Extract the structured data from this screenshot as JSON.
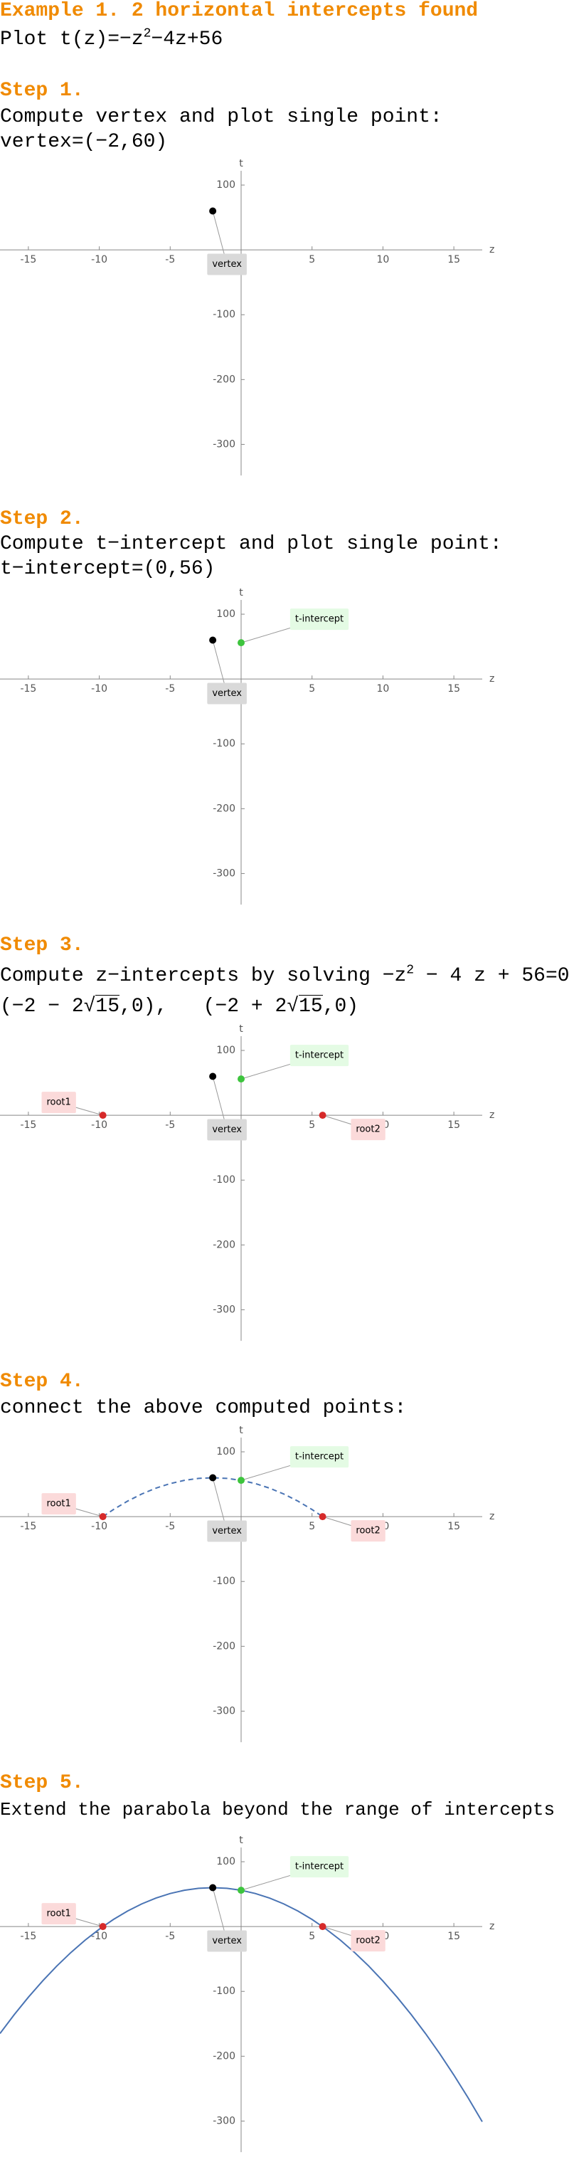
{
  "title": "Example 1. 2 horizontal intercepts found",
  "problem": {
    "text": "Plot t(z)=−z",
    "exp": "2",
    "rest": "−4z+56"
  },
  "steps": [
    {
      "heading": "Step 1.",
      "text": "Compute vertex and plot single point:",
      "result": "vertex=(−2,60)"
    },
    {
      "heading": "Step 2.",
      "text": "Compute t−intercept and plot single point:",
      "result": "t−intercept=(0,56)"
    },
    {
      "heading": "Step 3.",
      "text": "Compute z−intercepts by solving −z",
      "exp": "2",
      "rest": " − 4 z + 56=0:",
      "roots": [
        {
          "before": "(−2 − 2√",
          "radicand": "15",
          "after": ",0),"
        },
        {
          "before": "(−2 + 2√",
          "radicand": "15",
          "after": ",0)"
        }
      ]
    },
    {
      "heading": "Step 4.",
      "text": "connect the above computed points:"
    },
    {
      "heading": "Step 5.",
      "text": "Extend the parabola beyond the range of intercepts"
    }
  ],
  "chart_data": [
    {
      "type": "scatter",
      "xlabel": "z",
      "ylabel": "t",
      "xlim": [
        -17,
        17
      ],
      "ylim": [
        -348,
        122
      ],
      "xticks": [
        -15,
        -10,
        -5,
        5,
        10,
        15
      ],
      "yticks": [
        -300,
        -200,
        -100,
        100
      ],
      "points": [
        {
          "label": "vertex",
          "x": -2,
          "y": 60,
          "color": "#000000",
          "label_color": "#d9d9d9"
        }
      ]
    },
    {
      "type": "scatter",
      "xlabel": "z",
      "ylabel": "t",
      "xlim": [
        -17,
        17
      ],
      "ylim": [
        -348,
        122
      ],
      "xticks": [
        -15,
        -10,
        -5,
        5,
        10,
        15
      ],
      "yticks": [
        -300,
        -200,
        -100,
        100
      ],
      "points": [
        {
          "label": "vertex",
          "x": -2,
          "y": 60,
          "color": "#000000",
          "label_color": "#d9d9d9"
        },
        {
          "label": "t-intercept",
          "x": 0,
          "y": 56,
          "color": "#3dc43d",
          "label_color": "#e4fbe4"
        }
      ]
    },
    {
      "type": "scatter",
      "xlabel": "z",
      "ylabel": "t",
      "xlim": [
        -17,
        17
      ],
      "ylim": [
        -348,
        122
      ],
      "xticks": [
        -15,
        -10,
        -5,
        5,
        10,
        15
      ],
      "yticks": [
        -300,
        -200,
        -100,
        100
      ],
      "points": [
        {
          "label": "vertex",
          "x": -2,
          "y": 60,
          "color": "#000000",
          "label_color": "#d9d9d9"
        },
        {
          "label": "t-intercept",
          "x": 0,
          "y": 56,
          "color": "#3dc43d",
          "label_color": "#e4fbe4"
        },
        {
          "label": "root1",
          "x": -9.746,
          "y": 0,
          "color": "#d62a2a",
          "label_color": "#fbdada"
        },
        {
          "label": "root2",
          "x": 5.746,
          "y": 0,
          "color": "#d62a2a",
          "label_color": "#fbdada"
        }
      ]
    },
    {
      "type": "line",
      "xlabel": "z",
      "ylabel": "t",
      "xlim": [
        -17,
        17
      ],
      "ylim": [
        -348,
        122
      ],
      "xticks": [
        -15,
        -10,
        -5,
        5,
        10,
        15
      ],
      "yticks": [
        -300,
        -200,
        -100,
        100
      ],
      "curve": {
        "color": "#4a74b4",
        "dashed": true,
        "x": [
          -9.746,
          -9,
          -8,
          -7,
          -6,
          -5,
          -4,
          -3,
          -2,
          -1,
          0,
          1,
          2,
          3,
          4,
          5,
          5.746
        ],
        "values": [
          0,
          11,
          24,
          35,
          44,
          51,
          56,
          59,
          60,
          59,
          56,
          51,
          44,
          35,
          24,
          11,
          0
        ]
      },
      "points": [
        {
          "label": "vertex",
          "x": -2,
          "y": 60,
          "color": "#000000",
          "label_color": "#d9d9d9"
        },
        {
          "label": "t-intercept",
          "x": 0,
          "y": 56,
          "color": "#3dc43d",
          "label_color": "#e4fbe4"
        },
        {
          "label": "root1",
          "x": -9.746,
          "y": 0,
          "color": "#d62a2a",
          "label_color": "#fbdada"
        },
        {
          "label": "root2",
          "x": 5.746,
          "y": 0,
          "color": "#d62a2a",
          "label_color": "#fbdada"
        }
      ]
    },
    {
      "type": "line",
      "xlabel": "z",
      "ylabel": "t",
      "xlim": [
        -17,
        17
      ],
      "ylim": [
        -348,
        122
      ],
      "xticks": [
        -15,
        -10,
        -5,
        5,
        10,
        15
      ],
      "yticks": [
        -300,
        -200,
        -100,
        100
      ],
      "curve": {
        "color": "#4a74b4",
        "dashed": false,
        "x": [
          -17,
          -16,
          -15,
          -14,
          -13,
          -12,
          -11,
          -10,
          -9,
          -8,
          -7,
          -6,
          -5,
          -4,
          -3,
          -2,
          -1,
          0,
          1,
          2,
          3,
          4,
          5,
          6,
          7,
          8,
          9,
          10,
          11,
          12,
          13,
          14,
          15,
          16,
          17
        ],
        "values": [
          -165,
          -136,
          -109,
          -84,
          -61,
          -40,
          -21,
          -4,
          11,
          24,
          35,
          44,
          51,
          56,
          59,
          60,
          59,
          56,
          51,
          44,
          35,
          24,
          11,
          -4,
          -21,
          -40,
          -61,
          -84,
          -109,
          -136,
          -165,
          -196,
          -229,
          -264,
          -301
        ]
      },
      "points": [
        {
          "label": "vertex",
          "x": -2,
          "y": 60,
          "color": "#000000",
          "label_color": "#d9d9d9"
        },
        {
          "label": "t-intercept",
          "x": 0,
          "y": 56,
          "color": "#3dc43d",
          "label_color": "#e4fbe4"
        },
        {
          "label": "root1",
          "x": -9.746,
          "y": 0,
          "color": "#d62a2a",
          "label_color": "#fbdada"
        },
        {
          "label": "root2",
          "x": 5.746,
          "y": 0,
          "color": "#d62a2a",
          "label_color": "#fbdada"
        }
      ]
    }
  ]
}
